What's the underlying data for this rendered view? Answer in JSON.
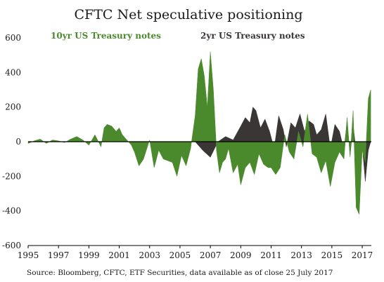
{
  "chart_data": {
    "type": "area",
    "title": "CFTC Net speculative positioning",
    "source": "Source: Bloomberg, CFTC, ETF Securities, data available as of close 25 July 2017",
    "xlim": [
      1995,
      2017.6
    ],
    "ylim": [
      -600,
      600
    ],
    "x_ticks": [
      "1995",
      "1997",
      "1999",
      "2001",
      "2003",
      "2005",
      "2007",
      "2009",
      "2011",
      "2013",
      "2015",
      "2017"
    ],
    "y_ticks": [
      "600",
      "400",
      "200",
      "0",
      "-200",
      "-400",
      "-600"
    ],
    "series": [
      {
        "name": "10yr US Treasury notes",
        "color": "#4a8a2c",
        "x": [
          1995.0,
          1995.4,
          1995.8,
          1996.2,
          1996.6,
          1997.0,
          1997.4,
          1997.8,
          1998.2,
          1998.6,
          1999.0,
          1999.4,
          1999.8,
          2000.0,
          2000.2,
          2000.5,
          2000.8,
          2001.0,
          2001.2,
          2001.5,
          2001.8,
          2002.0,
          2002.3,
          2002.6,
          2003.0,
          2003.3,
          2003.6,
          2003.9,
          2004.2,
          2004.5,
          2004.8,
          2005.1,
          2005.4,
          2005.7,
          2006.0,
          2006.2,
          2006.4,
          2006.6,
          2006.8,
          2007.0,
          2007.2,
          2007.4,
          2007.6,
          2007.8,
          2008.0,
          2008.2,
          2008.5,
          2008.8,
          2009.0,
          2009.3,
          2009.6,
          2009.9,
          2010.2,
          2010.5,
          2010.8,
          2011.0,
          2011.3,
          2011.6,
          2011.9,
          2012.2,
          2012.5,
          2012.8,
          2013.1,
          2013.4,
          2013.7,
          2014.0,
          2014.3,
          2014.6,
          2014.9,
          2015.2,
          2015.5,
          2015.8,
          2016.0,
          2016.2,
          2016.4,
          2016.6,
          2016.8,
          2017.0,
          2017.2,
          2017.4,
          2017.56
        ],
        "values": [
          -10,
          5,
          15,
          -10,
          10,
          5,
          -5,
          15,
          30,
          10,
          -20,
          40,
          -30,
          80,
          100,
          90,
          60,
          80,
          40,
          10,
          -20,
          -60,
          -140,
          -100,
          10,
          -150,
          -50,
          -100,
          -110,
          -120,
          -200,
          -80,
          -140,
          -40,
          150,
          420,
          480,
          380,
          200,
          520,
          300,
          -50,
          -180,
          -120,
          -100,
          -40,
          -180,
          -130,
          -250,
          -150,
          -120,
          -190,
          -70,
          -130,
          -150,
          -150,
          -190,
          -150,
          40,
          -60,
          -100,
          60,
          -30,
          160,
          -70,
          -90,
          -180,
          -110,
          -260,
          -120,
          -60,
          -100,
          140,
          -90,
          180,
          -380,
          -420,
          -50,
          -120,
          250,
          300
        ]
      },
      {
        "name": "2yr US Treasury notes",
        "color": "#3a3636",
        "x": [
          1995.0,
          1997.0,
          1999.0,
          2001.0,
          2003.0,
          2005.0,
          2006.0,
          2006.5,
          2007.0,
          2007.5,
          2008.0,
          2008.5,
          2009.0,
          2009.3,
          2009.6,
          2009.8,
          2010.0,
          2010.3,
          2010.6,
          2010.9,
          2011.2,
          2011.5,
          2011.8,
          2012.0,
          2012.3,
          2012.6,
          2012.9,
          2013.2,
          2013.5,
          2013.8,
          2014.0,
          2014.3,
          2014.6,
          2014.9,
          2015.2,
          2015.5,
          2015.8,
          2016.0,
          2016.2,
          2016.4,
          2016.6,
          2016.8,
          2017.0,
          2017.2,
          2017.4,
          2017.56
        ],
        "values": [
          0,
          0,
          0,
          0,
          0,
          0,
          0,
          -50,
          -90,
          0,
          30,
          10,
          90,
          140,
          110,
          200,
          180,
          80,
          130,
          60,
          -40,
          150,
          70,
          -30,
          110,
          80,
          160,
          60,
          120,
          100,
          40,
          70,
          160,
          -40,
          100,
          60,
          -50,
          120,
          -80,
          100,
          -60,
          -140,
          -20,
          -230,
          -50,
          0
        ]
      }
    ]
  }
}
